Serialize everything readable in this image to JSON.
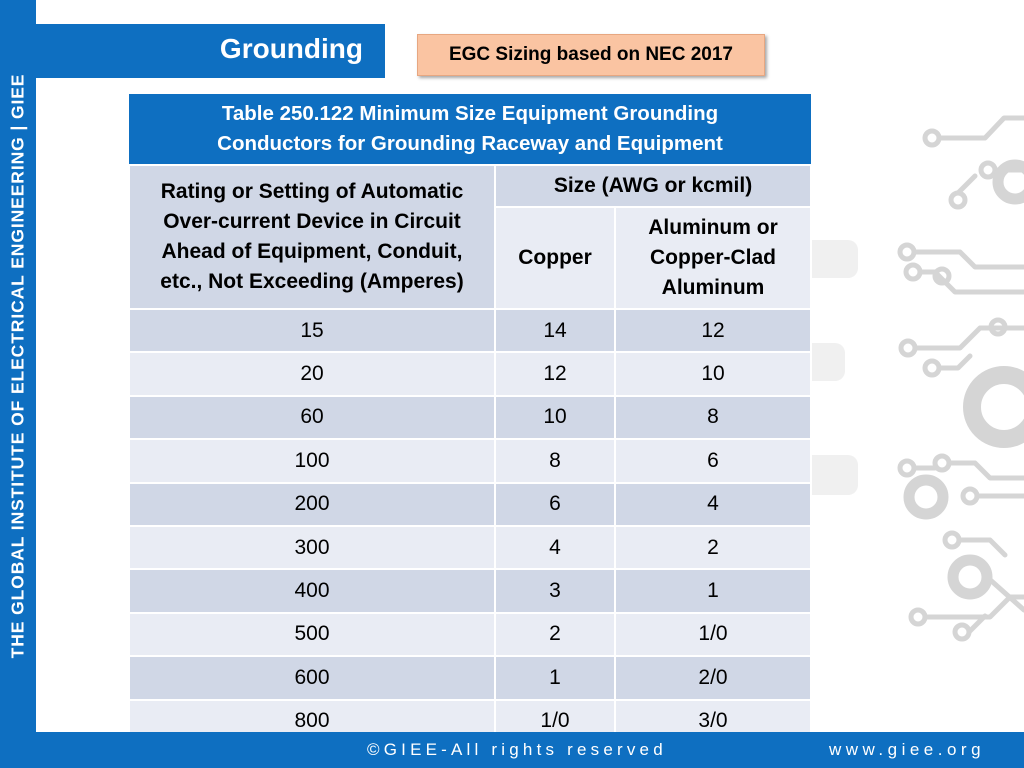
{
  "sidebar": {
    "brand_text": "THE GLOBAL INSTITUTE OF ELECTRICAL ENGINEERING | GIEE"
  },
  "header": {
    "title": "Grounding",
    "subtitle": "EGC Sizing based on NEC 2017"
  },
  "table": {
    "caption_line1": "Table 250.122 Minimum Size Equipment Grounding",
    "caption_line2": "Conductors for Grounding Raceway and Equipment",
    "col1_header_lines": [
      "Rating or Setting of Automatic",
      "Over-current Device in Circuit",
      "Ahead of Equipment, Conduit,",
      "etc., Not Exceeding (Amperes)"
    ],
    "size_header": "Size (AWG or kcmil)",
    "copper_header": "Copper",
    "aluminum_header_lines": [
      "Aluminum or",
      "Copper-Clad",
      "Aluminum"
    ],
    "rows": [
      {
        "rating": "15",
        "copper": "14",
        "aluminum": "12"
      },
      {
        "rating": "20",
        "copper": "12",
        "aluminum": "10"
      },
      {
        "rating": "60",
        "copper": "10",
        "aluminum": "8"
      },
      {
        "rating": "100",
        "copper": "8",
        "aluminum": "6"
      },
      {
        "rating": "200",
        "copper": "6",
        "aluminum": "4"
      },
      {
        "rating": "300",
        "copper": "4",
        "aluminum": "2"
      },
      {
        "rating": "400",
        "copper": "3",
        "aluminum": "1"
      },
      {
        "rating": "500",
        "copper": "2",
        "aluminum": "1/0"
      },
      {
        "rating": "600",
        "copper": "1",
        "aluminum": "2/0"
      },
      {
        "rating": "800",
        "copper": "1/0",
        "aluminum": "3/0"
      }
    ]
  },
  "footer": {
    "copyright": "©GIEE-All rights reserved",
    "website": "www.giee.org"
  },
  "colors": {
    "brand_blue": "#0e6fc1",
    "subtitle_bg": "#fac4a2",
    "row_dark": "#d0d7e6",
    "row_light": "#e9ecf4"
  }
}
